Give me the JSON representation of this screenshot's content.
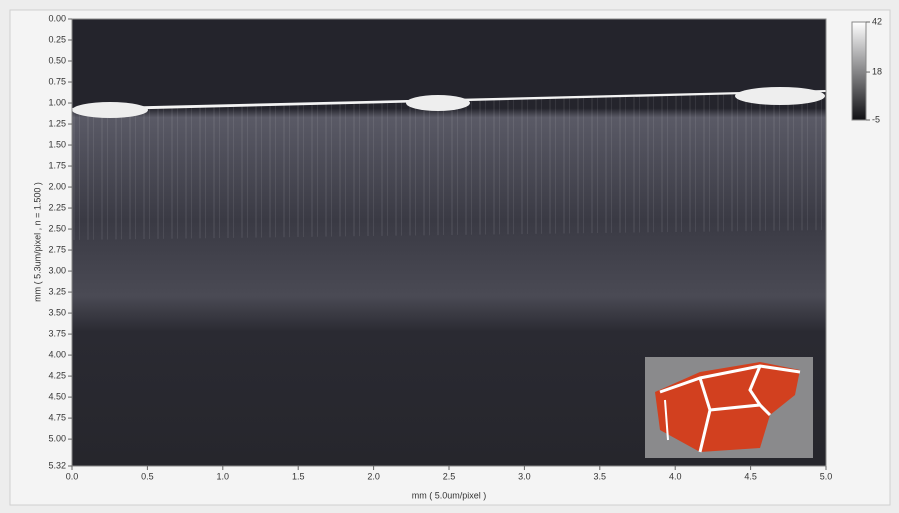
{
  "chart_data": {
    "type": "image",
    "xlabel": "mm ( 5.0um/pixel )",
    "ylabel": "mm ( 5.3um/pixel , n = 1.500 )",
    "xlim": [
      0,
      5
    ],
    "ylim": [
      5.32,
      0
    ],
    "xticks": [
      {
        "value": 0,
        "label": "0.0"
      },
      {
        "value": 0.5,
        "label": "0.5"
      },
      {
        "value": 1,
        "label": "1.0"
      },
      {
        "value": 1.5,
        "label": "1.5"
      },
      {
        "value": 2,
        "label": "2.0"
      },
      {
        "value": 2.5,
        "label": "2.5"
      },
      {
        "value": 3,
        "label": "3.0"
      },
      {
        "value": 3.5,
        "label": "3.5"
      },
      {
        "value": 4,
        "label": "4.0"
      },
      {
        "value": 4.5,
        "label": "4.5"
      },
      {
        "value": 5,
        "label": "5.0"
      }
    ],
    "yticks": [
      {
        "value": 0,
        "label": "0.00"
      },
      {
        "value": 0.25,
        "label": "0.25"
      },
      {
        "value": 0.5,
        "label": "0.50"
      },
      {
        "value": 0.75,
        "label": "0.75"
      },
      {
        "value": 1,
        "label": "1.00"
      },
      {
        "value": 1.25,
        "label": "1.25"
      },
      {
        "value": 1.5,
        "label": "1.50"
      },
      {
        "value": 1.75,
        "label": "1.75"
      },
      {
        "value": 2,
        "label": "2.00"
      },
      {
        "value": 2.25,
        "label": "2.25"
      },
      {
        "value": 2.5,
        "label": "2.50"
      },
      {
        "value": 2.75,
        "label": "2.75"
      },
      {
        "value": 3,
        "label": "3.00"
      },
      {
        "value": 3.25,
        "label": "3.25"
      },
      {
        "value": 3.5,
        "label": "3.50"
      },
      {
        "value": 3.75,
        "label": "3.75"
      },
      {
        "value": 4,
        "label": "4.00"
      },
      {
        "value": 4.25,
        "label": "4.25"
      },
      {
        "value": 4.5,
        "label": "4.50"
      },
      {
        "value": 4.75,
        "label": "4.75"
      },
      {
        "value": 5,
        "label": "5.00"
      },
      {
        "value": 5.32,
        "label": "5.32"
      }
    ],
    "clim": [
      -5,
      42
    ],
    "cticks": [
      -5,
      18,
      42
    ]
  }
}
